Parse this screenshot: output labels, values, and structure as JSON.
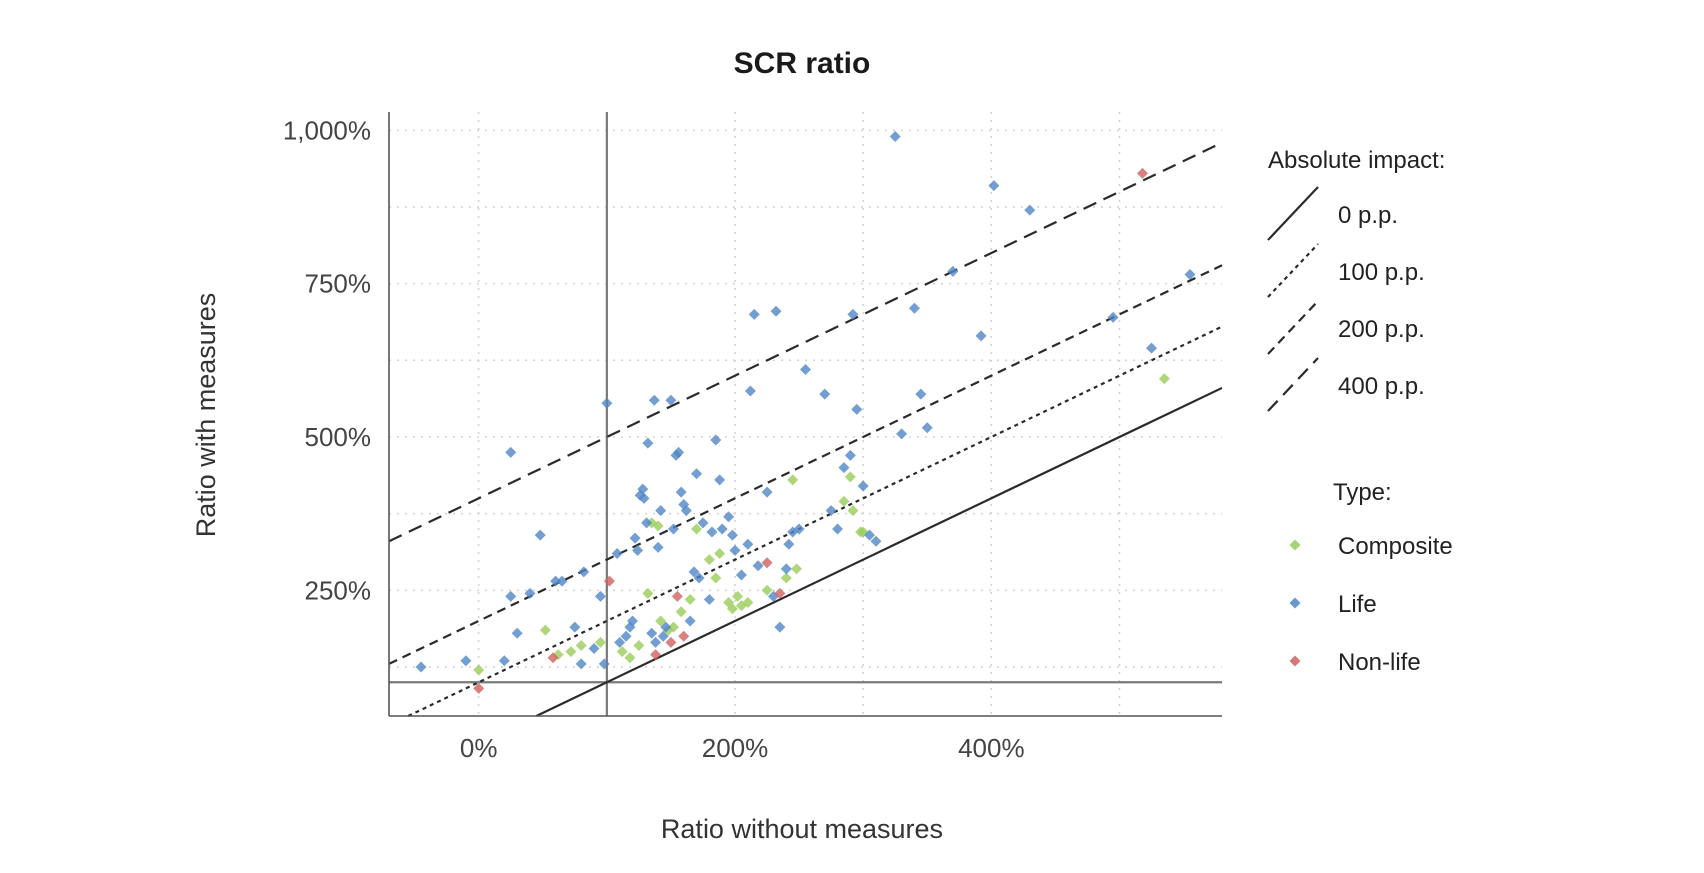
{
  "chart_data": {
    "type": "scatter",
    "title": "SCR ratio",
    "xlabel": "Ratio without measures",
    "ylabel": "Ratio with measures",
    "xlim": [
      -70,
      580
    ],
    "ylim": [
      45,
      1030
    ],
    "x_ticks": [
      0,
      200,
      400
    ],
    "x_tick_labels": [
      "0%",
      "200%",
      "400%"
    ],
    "y_ticks": [
      250,
      500,
      750,
      1000
    ],
    "y_tick_labels": [
      "250%",
      "500%",
      "750%",
      "1,000%"
    ],
    "grid": true,
    "reference_lines": {
      "x": 100,
      "y": 100
    },
    "impact_lines": [
      {
        "offset": 0,
        "label": "0 p.p.",
        "dash": ""
      },
      {
        "offset": 100,
        "label": "100 p.p.",
        "dash": "4 4"
      },
      {
        "offset": 200,
        "label": "200 p.p.",
        "dash": "9 6"
      },
      {
        "offset": 400,
        "label": "400 p.p.",
        "dash": "14 8"
      }
    ],
    "legend_placement": "right",
    "impact_legend_title": "Absolute impact:",
    "type_legend_title": "Type:",
    "series": [
      {
        "name": "Composite",
        "color": "#9acd5a",
        "points": [
          [
            0,
            120
          ],
          [
            52,
            185
          ],
          [
            62,
            145
          ],
          [
            72,
            150
          ],
          [
            80,
            160
          ],
          [
            95,
            165
          ],
          [
            112,
            150
          ],
          [
            118,
            140
          ],
          [
            125,
            160
          ],
          [
            132,
            245
          ],
          [
            135,
            360
          ],
          [
            140,
            355
          ],
          [
            142,
            200
          ],
          [
            148,
            185
          ],
          [
            152,
            190
          ],
          [
            158,
            215
          ],
          [
            165,
            235
          ],
          [
            170,
            350
          ],
          [
            180,
            300
          ],
          [
            185,
            270
          ],
          [
            188,
            310
          ],
          [
            195,
            230
          ],
          [
            198,
            220
          ],
          [
            202,
            240
          ],
          [
            205,
            225
          ],
          [
            210,
            230
          ],
          [
            225,
            250
          ],
          [
            240,
            270
          ],
          [
            245,
            430
          ],
          [
            248,
            285
          ],
          [
            285,
            395
          ],
          [
            290,
            435
          ],
          [
            292,
            380
          ],
          [
            298,
            345
          ],
          [
            300,
            345
          ],
          [
            535,
            595
          ]
        ]
      },
      {
        "name": "Life",
        "color": "#4f86c6",
        "points": [
          [
            -45,
            125
          ],
          [
            -10,
            135
          ],
          [
            20,
            135
          ],
          [
            25,
            240
          ],
          [
            25,
            475
          ],
          [
            30,
            180
          ],
          [
            40,
            245
          ],
          [
            48,
            340
          ],
          [
            60,
            265
          ],
          [
            65,
            265
          ],
          [
            75,
            190
          ],
          [
            80,
            130
          ],
          [
            82,
            280
          ],
          [
            90,
            155
          ],
          [
            95,
            240
          ],
          [
            98,
            130
          ],
          [
            100,
            555
          ],
          [
            108,
            310
          ],
          [
            110,
            165
          ],
          [
            115,
            175
          ],
          [
            118,
            190
          ],
          [
            120,
            200
          ],
          [
            122,
            335
          ],
          [
            124,
            315
          ],
          [
            126,
            405
          ],
          [
            128,
            415
          ],
          [
            129,
            400
          ],
          [
            131,
            360
          ],
          [
            132,
            490
          ],
          [
            135,
            180
          ],
          [
            137,
            560
          ],
          [
            138,
            165
          ],
          [
            140,
            320
          ],
          [
            142,
            380
          ],
          [
            144,
            175
          ],
          [
            146,
            190
          ],
          [
            150,
            560
          ],
          [
            152,
            350
          ],
          [
            154,
            470
          ],
          [
            156,
            475
          ],
          [
            158,
            410
          ],
          [
            160,
            390
          ],
          [
            162,
            380
          ],
          [
            165,
            200
          ],
          [
            168,
            280
          ],
          [
            170,
            440
          ],
          [
            172,
            270
          ],
          [
            175,
            360
          ],
          [
            180,
            235
          ],
          [
            182,
            345
          ],
          [
            185,
            495
          ],
          [
            188,
            430
          ],
          [
            190,
            350
          ],
          [
            195,
            370
          ],
          [
            198,
            340
          ],
          [
            200,
            315
          ],
          [
            205,
            275
          ],
          [
            210,
            325
          ],
          [
            212,
            575
          ],
          [
            215,
            700
          ],
          [
            218,
            290
          ],
          [
            225,
            410
          ],
          [
            230,
            240
          ],
          [
            232,
            705
          ],
          [
            235,
            190
          ],
          [
            240,
            285
          ],
          [
            242,
            325
          ],
          [
            245,
            345
          ],
          [
            250,
            350
          ],
          [
            255,
            610
          ],
          [
            270,
            570
          ],
          [
            275,
            380
          ],
          [
            280,
            350
          ],
          [
            285,
            450
          ],
          [
            290,
            470
          ],
          [
            292,
            700
          ],
          [
            295,
            545
          ],
          [
            300,
            420
          ],
          [
            305,
            340
          ],
          [
            310,
            330
          ],
          [
            325,
            990
          ],
          [
            330,
            505
          ],
          [
            340,
            710
          ],
          [
            345,
            570
          ],
          [
            350,
            515
          ],
          [
            370,
            770
          ],
          [
            392,
            665
          ],
          [
            402,
            910
          ],
          [
            430,
            870
          ],
          [
            495,
            695
          ],
          [
            525,
            645
          ],
          [
            555,
            765
          ]
        ]
      },
      {
        "name": "Non-life",
        "color": "#d06060",
        "points": [
          [
            0,
            90
          ],
          [
            58,
            140
          ],
          [
            102,
            265
          ],
          [
            138,
            145
          ],
          [
            150,
            165
          ],
          [
            155,
            240
          ],
          [
            160,
            175
          ],
          [
            225,
            295
          ],
          [
            235,
            245
          ],
          [
            518,
            930
          ]
        ]
      }
    ]
  }
}
